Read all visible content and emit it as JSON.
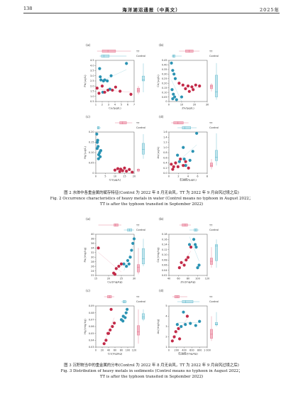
{
  "header": {
    "page_number": "138",
    "journal": "海洋湖沼通报（中英文）",
    "year": "2025年"
  },
  "legend": {
    "tt": "TT",
    "control": "Control"
  },
  "colors": {
    "tt": "#e06a86",
    "control": "#56b4c8",
    "tt_dot": "#c22a48",
    "control_dot": "#2b93b3"
  },
  "figure2": {
    "caption_cn": "图 2   水体中各重金属的赋存特征(Control 为 2022 年 8 月无台风，TT 为 2022 年 9 月台风过境之后)",
    "caption_en_1": "Fig. 2   Occurrence characteristics of heavy metals in water (Control means no typhoon in August 2022；",
    "caption_en_2": "TT is after the typhoon transited in September 2022)",
    "panels": [
      {
        "label": "(a)",
        "xlabel": "Cu/(μg/L)",
        "ylabel": "Pb/(μg/L)",
        "xlim": [
          1,
          7
        ],
        "xticks": [
          "1",
          "2",
          "3",
          "4",
          "5",
          "6",
          "7"
        ],
        "ylim": [
          0.5,
          4.5
        ],
        "yticks": [
          "0.5",
          "1.0",
          "1.5",
          "2.0",
          "2.5",
          "3.0",
          "3.5",
          "4.0",
          "4.5"
        ],
        "control": [
          [
            1.6,
            3.7
          ],
          [
            1.7,
            2.9
          ],
          [
            1.8,
            2.6
          ],
          [
            2.2,
            2.5
          ],
          [
            2.4,
            2.6
          ],
          [
            2.8,
            2.5
          ],
          [
            3.4,
            3.0
          ],
          [
            2.1,
            1.4
          ],
          [
            3.2,
            1.7
          ],
          [
            5.8,
            4.2
          ]
        ],
        "tt": [
          [
            1.2,
            1.8
          ],
          [
            1.5,
            1.3
          ],
          [
            2.0,
            2.0
          ],
          [
            2.4,
            1.4
          ],
          [
            2.9,
            1.6
          ],
          [
            3.6,
            1.6
          ],
          [
            4.1,
            1.9
          ],
          [
            4.8,
            1.5
          ],
          [
            6.5,
            1.2
          ]
        ]
      },
      {
        "label": "(b)",
        "xlabel": "Zn/(μg/L)",
        "ylabel": "Cd/(μg/L)",
        "xlim": [
          0,
          30
        ],
        "xticks": [
          "0",
          "10",
          "20",
          "30"
        ],
        "ylim": [
          0,
          0.45
        ],
        "yticks": [
          "0",
          "0.05",
          "0.10",
          "0.15",
          "0.20",
          "0.25",
          "0.30",
          "0.35",
          "0.40",
          "0.45"
        ],
        "control": [
          [
            2,
            0.42
          ],
          [
            3,
            0.34
          ],
          [
            4,
            0.3
          ],
          [
            5,
            0.25
          ],
          [
            2.5,
            0.13
          ],
          [
            3.5,
            0.08
          ],
          [
            4.5,
            0.05
          ],
          [
            3,
            0.03
          ],
          [
            10,
            0.05
          ],
          [
            6,
            0.02
          ]
        ],
        "tt": [
          [
            8,
            0.2
          ],
          [
            11,
            0.18
          ],
          [
            13,
            0.14
          ],
          [
            15,
            0.17
          ],
          [
            18,
            0.16
          ],
          [
            19,
            0.13
          ],
          [
            21,
            0.18
          ],
          [
            16,
            0.11
          ],
          [
            24,
            0.17
          ]
        ]
      },
      {
        "label": "(c)",
        "xlabel": "Cr/(μg/L)",
        "ylabel": "Hg/(μg/L)",
        "xlim": [
          0,
          20
        ],
        "xticks": [
          "0",
          "5",
          "10",
          "15",
          "20"
        ],
        "ylim": [
          0,
          0.2
        ],
        "yticks": [
          "0",
          "0.05",
          "0.10",
          "0.15",
          "0.20"
        ],
        "control": [
          [
            0.5,
            0.19
          ],
          [
            0.8,
            0.15
          ],
          [
            1.0,
            0.16
          ],
          [
            1.2,
            0.13
          ],
          [
            0.7,
            0.12
          ],
          [
            1.5,
            0.09
          ],
          [
            2.0,
            0.1
          ],
          [
            2.3,
            0.08
          ],
          [
            1.4,
            0.07
          ],
          [
            2.6,
            0.11
          ]
        ],
        "tt": [
          [
            10,
            0.015
          ],
          [
            11.5,
            0.022
          ],
          [
            12.5,
            0.008
          ],
          [
            13,
            0.02
          ],
          [
            14,
            0.012
          ],
          [
            15,
            0.025
          ],
          [
            16,
            0.01
          ],
          [
            17.5,
            0.018
          ],
          [
            19,
            0.005
          ]
        ]
      },
      {
        "label": "(d)",
        "xlabel": "石油烃/(μg/L)",
        "ylabel": "As/(μg/L)",
        "xlim": [
          0,
          8
        ],
        "xticks": [
          "0",
          "2",
          "4",
          "6",
          "8"
        ],
        "ylim": [
          0.0,
          1.6
        ],
        "yticks": [
          "0.0",
          "0.2",
          "0.4",
          "0.6",
          "0.8",
          "1.0",
          "1.2",
          "1.4",
          "1.6"
        ],
        "control": [
          [
            1.8,
            0.7
          ],
          [
            3.0,
            1.0
          ],
          [
            3.2,
            0.55
          ],
          [
            3.5,
            0.3
          ],
          [
            4.4,
            0.5
          ],
          [
            5.0,
            0.85
          ],
          [
            5.8,
            1.55
          ],
          [
            2.2,
            0.45
          ]
        ],
        "tt": [
          [
            0.5,
            0.35
          ],
          [
            0.8,
            0.15
          ],
          [
            1.0,
            0.25
          ],
          [
            1.4,
            0.4
          ],
          [
            1.9,
            0.25
          ],
          [
            2.4,
            0.55
          ],
          [
            3.0,
            0.3
          ],
          [
            3.5,
            0.45
          ],
          [
            4.1,
            0.2
          ]
        ]
      }
    ]
  },
  "figure3": {
    "caption_cn": "图 3   沉积物当中的重金属的分布(Control 为 2022 年 8 月无台风，TT 为 2022 年 9 月台风过境之后)",
    "caption_en_1": "Fig. 3   Distribution of heavy metals in sediments (Control means no typhoon in August 2022；",
    "caption_en_2": "TT is after the typhoon transited in September 2022)",
    "panels": [
      {
        "label": "(a)",
        "xlabel": "Cu/(mg/kg)",
        "ylabel": "Pb/(mg/kg)",
        "xlim": [
          15,
          30
        ],
        "xticks": [
          "15",
          "20",
          "25",
          "30"
        ],
        "ylim": [
          22,
          40
        ],
        "yticks": [
          "22",
          "24",
          "26",
          "28",
          "30",
          "32",
          "34",
          "36",
          "38",
          "40"
        ],
        "control": [
          [
            27.5,
            28.5
          ],
          [
            28.5,
            30
          ],
          [
            29,
            33
          ],
          [
            29.5,
            36
          ],
          [
            30,
            38
          ],
          [
            26,
            27
          ],
          [
            27,
            26
          ],
          [
            28,
            27
          ]
        ],
        "tt": [
          [
            16,
            34
          ],
          [
            22,
            23
          ],
          [
            23,
            25
          ],
          [
            24,
            26
          ],
          [
            25,
            27
          ],
          [
            22.5,
            22.5
          ]
        ]
      },
      {
        "label": "(b)",
        "xlabel": "Zn/(mg/kg)",
        "ylabel": "Cd/(mg/kg)",
        "xlim": [
          40,
          120
        ],
        "xticks": [
          "40",
          "60",
          "80",
          "100",
          "120"
        ],
        "ylim": [
          0.02,
          0.18
        ],
        "yticks": [
          "0.02",
          "0.04",
          "0.06",
          "0.08",
          "0.10",
          "0.12",
          "0.14",
          "0.16",
          "0.18"
        ],
        "control": [
          [
            83,
            0.14
          ],
          [
            92,
            0.16
          ],
          [
            95,
            0.14
          ],
          [
            100,
            0.05
          ],
          [
            103,
            0.06
          ],
          [
            97,
            0.13
          ]
        ],
        "tt": [
          [
            62,
            0.05
          ],
          [
            66,
            0.07
          ],
          [
            72,
            0.06
          ],
          [
            80,
            0.09
          ],
          [
            86,
            0.13
          ],
          [
            76,
            0.08
          ]
        ]
      },
      {
        "label": "(c)",
        "xlabel": "Cr/(mg/kg)",
        "ylabel": "Hg/(mg/kg)",
        "xlim": [
          0,
          120
        ],
        "xticks": [
          "0",
          "20",
          "40",
          "60",
          "80",
          "100",
          "120"
        ],
        "ylim": [
          0.03,
          0.09
        ],
        "yticks": [
          "0.03",
          "0.04",
          "0.05",
          "0.06",
          "0.07",
          "0.08",
          "0.09"
        ],
        "control": [
          [
            80,
            0.07
          ],
          [
            86,
            0.075
          ],
          [
            92,
            0.073
          ],
          [
            95,
            0.08
          ],
          [
            98,
            0.085
          ],
          [
            85,
            0.068
          ]
        ],
        "tt": [
          [
            26,
            0.035
          ],
          [
            32,
            0.04
          ],
          [
            38,
            0.05
          ],
          [
            45,
            0.055
          ],
          [
            52,
            0.06
          ],
          [
            58,
            0.065
          ],
          [
            48,
            0.085
          ],
          [
            40,
            0.05
          ]
        ]
      },
      {
        "label": "(d)",
        "xlabel": "石油烃/(mg/kg)",
        "ylabel": "As/(mg/kg)",
        "xlim": [
          0,
          1000
        ],
        "xticks": [
          "0",
          "200",
          "400",
          "600",
          "800",
          "1 000"
        ],
        "ylim": [
          1,
          5
        ],
        "yticks": [
          "1",
          "2",
          "3",
          "4",
          "5"
        ],
        "control": [
          [
            220,
            3.2
          ],
          [
            320,
            3.0
          ],
          [
            430,
            3.2
          ],
          [
            560,
            3.3
          ],
          [
            700,
            3.1
          ],
          [
            800,
            3.5
          ],
          [
            380,
            4.4
          ]
        ],
        "tt": [
          [
            90,
            1.6
          ],
          [
            140,
            2.0
          ],
          [
            180,
            2.5
          ],
          [
            250,
            2.8
          ],
          [
            480,
            4.0
          ],
          [
            280,
            1.8
          ]
        ]
      }
    ]
  }
}
